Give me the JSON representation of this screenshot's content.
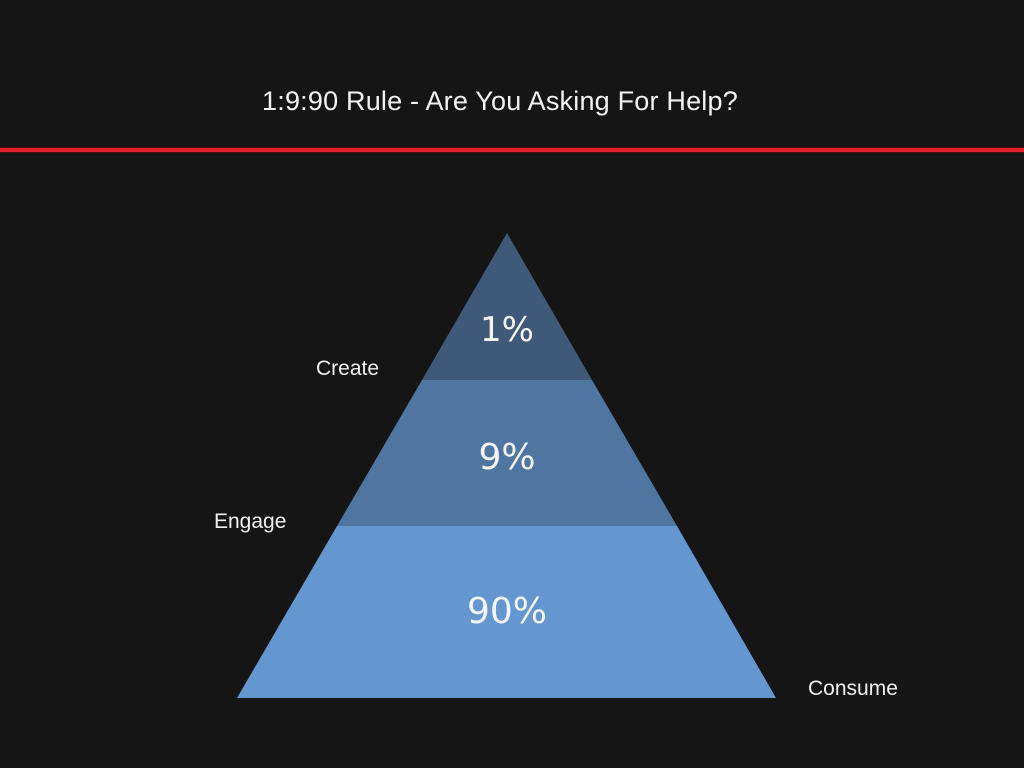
{
  "title": "1:9:90 Rule - Are You Asking For Help?",
  "colors": {
    "background": "#151515",
    "accent_line": "#e2202b",
    "tier_top": "#3f5a78",
    "tier_middle": "#4f76a0",
    "tier_bottom": "#6497cf"
  },
  "pyramid": {
    "tiers": [
      {
        "label": "Create",
        "percent": "1%"
      },
      {
        "label": "Engage",
        "percent": "9%"
      },
      {
        "label": "Consume",
        "percent": "90%"
      }
    ]
  }
}
